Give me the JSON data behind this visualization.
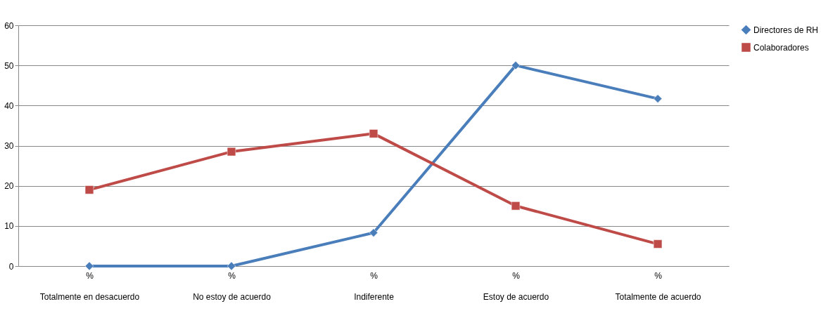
{
  "chart_data": {
    "type": "line",
    "categories": [
      "%\nTotalmente en desacuerdo",
      "%\nNo estoy de acuerdo",
      "%\nIndiferente",
      "%\nEstoy de acuerdo",
      "%\nTotalmente de acuerdo"
    ],
    "series": [
      {
        "name": "Directores de RH",
        "color": "#4a7ebb",
        "marker": "diamond",
        "values": [
          0,
          0,
          8.3,
          50,
          41.7
        ]
      },
      {
        "name": "Colaboradores",
        "color": "#be4b48",
        "marker": "square",
        "values": [
          19,
          28.5,
          33,
          15,
          5.5
        ]
      }
    ],
    "ylim": [
      0,
      60
    ],
    "yticks": [
      0,
      10,
      20,
      30,
      40,
      50,
      60
    ],
    "grid": "y",
    "legend": "right",
    "line_style": "solid"
  }
}
